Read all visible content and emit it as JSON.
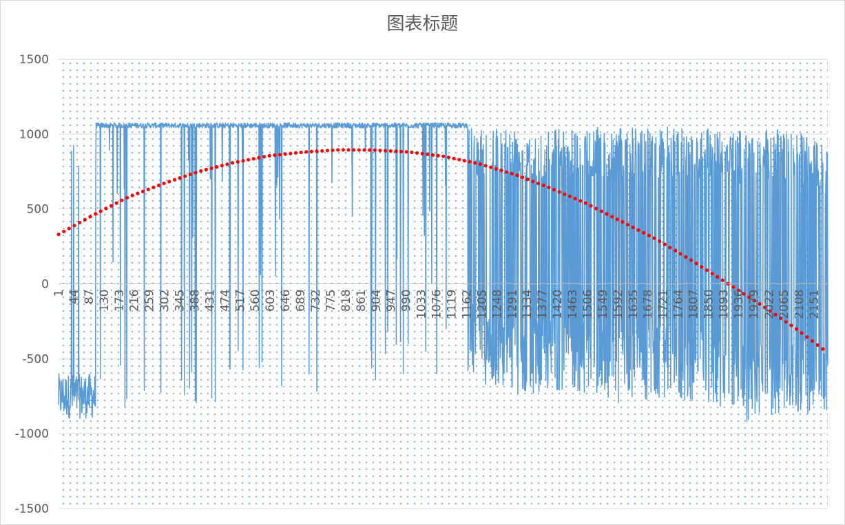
{
  "chart_data": {
    "type": "line",
    "title": "图表标题",
    "xlabel": "",
    "ylabel": "",
    "ylim": [
      -1500,
      1500
    ],
    "y_ticks": [
      1500,
      1000,
      500,
      0,
      -500,
      -1000,
      -1500
    ],
    "y_tick_labels": [
      "1500",
      "1000",
      "500",
      "0",
      "-500",
      "-1000",
      "-1500"
    ],
    "x_range": [
      1,
      2190
    ],
    "x_tick_labels": [
      "1",
      "44",
      "87",
      "130",
      "173",
      "216",
      "259",
      "302",
      "345",
      "388",
      "431",
      "474",
      "517",
      "560",
      "603",
      "646",
      "689",
      "732",
      "775",
      "818",
      "861",
      "904",
      "947",
      "990",
      "1033",
      "1076",
      "1119",
      "1162",
      "1205",
      "1248",
      "1291",
      "1334",
      "1377",
      "1420",
      "1463",
      "1506",
      "1549",
      "1592",
      "1635",
      "1678",
      "1721",
      "1764",
      "1807",
      "1850",
      "1893",
      "1936",
      "1979",
      "2022",
      "2065",
      "2108",
      "2151"
    ],
    "grid": "horizontal",
    "plot_area_fill": "dotted",
    "legend": "none",
    "series": [
      {
        "name": "",
        "style": "solid-line",
        "color": "#5b9bd5",
        "sample_x": [
          1,
          5,
          10,
          20,
          30,
          40,
          50,
          60,
          70,
          80,
          90,
          100,
          105,
          110,
          130,
          150,
          170,
          200,
          230,
          260,
          290,
          320,
          350,
          400,
          450,
          500,
          550,
          600,
          650,
          700,
          750,
          800,
          850,
          900,
          950,
          1000,
          1050,
          1100,
          1150,
          1180,
          1200,
          1250,
          1300,
          1400,
          1500,
          1600,
          1700,
          1800,
          1900,
          1950,
          2000,
          2050,
          2100,
          2150,
          2190
        ],
        "sample_y": [
          -800,
          1080,
          -900,
          -780,
          -800,
          -950,
          -850,
          -1000,
          -900,
          -800,
          -950,
          -900,
          1080,
          1075,
          1070,
          1070,
          1070,
          1075,
          1070,
          1070,
          1075,
          1070,
          1075,
          1070,
          1075,
          1070,
          1070,
          1070,
          1075,
          1070,
          1075,
          1070,
          1075,
          1070,
          1075,
          1070,
          1070,
          1070,
          1060,
          -300,
          1060,
          -350,
          1050,
          -450,
          1040,
          -550,
          1030,
          -550,
          1040,
          -650,
          1000,
          -750,
          1000,
          -800,
          -700
        ],
        "envelope_x": [
          1,
          110,
          1170,
          1190,
          1300,
          1450,
          1600,
          1750,
          1900,
          1960,
          2000,
          2100,
          2190
        ],
        "envelope_high": [
          1080,
          1080,
          1075,
          1070,
          1060,
          1050,
          1050,
          1050,
          1060,
          1000,
          1040,
          1040,
          900
        ],
        "envelope_low": [
          -1100,
          -900,
          -600,
          -650,
          -750,
          -700,
          -800,
          -780,
          -820,
          -930,
          -880,
          -880,
          -850
        ]
      },
      {
        "name": "",
        "style": "dotted-trendline",
        "color": "#ff0000",
        "x": [
          1,
          100,
          200,
          300,
          400,
          500,
          600,
          700,
          800,
          900,
          1000,
          1100,
          1200,
          1300,
          1400,
          1500,
          1600,
          1700,
          1800,
          1900,
          2000,
          2100,
          2190
        ],
        "values": [
          330,
          460,
          580,
          670,
          750,
          810,
          855,
          880,
          895,
          893,
          880,
          850,
          800,
          730,
          640,
          540,
          420,
          300,
          160,
          10,
          -140,
          -300,
          -460
        ]
      }
    ]
  }
}
